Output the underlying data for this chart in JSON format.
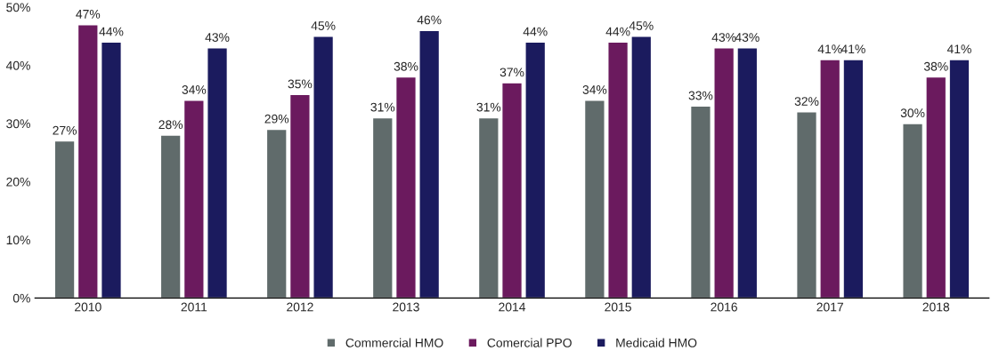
{
  "chart_data": {
    "type": "bar",
    "categories": [
      "2010",
      "2011",
      "2012",
      "2013",
      "2014",
      "2015",
      "2016",
      "2017",
      "2018"
    ],
    "series": [
      {
        "name": "Commercial HMO",
        "color": "#606b6b",
        "values": [
          27,
          28,
          29,
          31,
          31,
          34,
          33,
          32,
          30
        ],
        "value_labels": [
          "27%",
          "28%",
          "29%",
          "31%",
          "31%",
          "34%",
          "33%",
          "32%",
          "30%"
        ]
      },
      {
        "name": "Comercial PPO",
        "color": "#6b1a5e",
        "values": [
          47,
          34,
          35,
          38,
          37,
          44,
          43,
          41,
          38
        ],
        "value_labels": [
          "47%",
          "34%",
          "35%",
          "38%",
          "37%",
          "44%",
          "43%",
          "41%",
          "38%"
        ]
      },
      {
        "name": "Medicaid HMO",
        "color": "#1b1b5e",
        "values": [
          44,
          43,
          45,
          46,
          44,
          45,
          43,
          41,
          41
        ],
        "value_labels": [
          "44%",
          "43%",
          "45%",
          "46%",
          "44%",
          "45%",
          "43%",
          "41%",
          "41%"
        ]
      }
    ],
    "ylim": [
      0,
      50
    ],
    "yticks": [
      {
        "value": 0,
        "label": "0%"
      },
      {
        "value": 10,
        "label": "10%"
      },
      {
        "value": 20,
        "label": "20%"
      },
      {
        "value": 30,
        "label": "30%"
      },
      {
        "value": 40,
        "label": "40%"
      },
      {
        "value": 50,
        "label": "50%"
      }
    ],
    "grid": false,
    "legend": "bottom"
  }
}
